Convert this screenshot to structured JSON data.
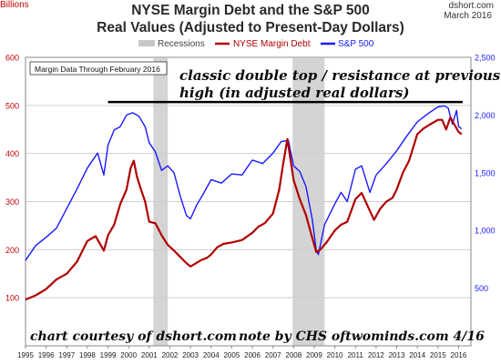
{
  "chart_data": {
    "type": "line",
    "title": "NYSE Margin Debt and the S&P 500",
    "subtitle": "Real Values (Adjusted to Present-Day Dollars)",
    "source": "dshort.com",
    "date": "March 2016",
    "ylabel_left": "Billions",
    "legend": {
      "placement": "top-center",
      "recessions": "Recessions",
      "margin_debt": "NYSE Margin Debt",
      "sp500": "S&P 500"
    },
    "note_box": "Margin Data Through February 2016",
    "annotation": "classic double top / resistance at previous high (in adjusted real dollars)",
    "annotation_line1": "classic double top / resistance at previous",
    "annotation_line2": "high (in adjusted real dollars)",
    "credit_left": "chart courtesy of dshort.com",
    "credit_right": "note by CHS   oftwominds.com  4/16",
    "left_axis": {
      "min": 0,
      "max": 600,
      "ticks": [
        "100",
        "200",
        "300",
        "400",
        "500",
        "600"
      ],
      "tick_values": [
        100,
        200,
        300,
        400,
        500,
        600
      ]
    },
    "right_axis": {
      "min": 0,
      "max": 2500,
      "ticks": [
        "500",
        "1,000",
        "1,500",
        "2,000",
        "2,500"
      ],
      "tick_values": [
        500,
        1000,
        1500,
        2000,
        2500
      ]
    },
    "x_ticks": [
      "1995",
      "1996",
      "1997",
      "1998",
      "1999",
      "2000",
      "2001",
      "2002",
      "2003",
      "2004",
      "2005",
      "2006",
      "2007",
      "2008",
      "2009",
      "2010",
      "2011",
      "2012",
      "2013",
      "2014",
      "2015",
      "2016"
    ],
    "x_range": [
      1995,
      2016.6
    ],
    "recessions": [
      [
        2001.2,
        2001.9
      ],
      [
        2007.95,
        2009.5
      ]
    ],
    "resistance_line": {
      "x": [
        1999.0,
        2016.2
      ],
      "left_value": 507
    },
    "series": [
      {
        "name": "NYSE Margin Debt",
        "axis": "left",
        "color": "#b00000",
        "x": [
          1995.0,
          1995.5,
          1996.0,
          1996.5,
          1997.0,
          1997.5,
          1998.0,
          1998.4,
          1998.8,
          1999.0,
          1999.3,
          1999.6,
          1999.9,
          2000.1,
          2000.25,
          2000.4,
          2000.6,
          2000.8,
          2001.0,
          2001.3,
          2001.6,
          2001.9,
          2002.2,
          2002.5,
          2002.8,
          2003.0,
          2003.2,
          2003.5,
          2003.8,
          2004.0,
          2004.3,
          2004.6,
          2005.0,
          2005.5,
          2006.0,
          2006.3,
          2006.6,
          2007.0,
          2007.3,
          2007.5,
          2007.7,
          2008.0,
          2008.3,
          2008.6,
          2008.9,
          2009.1,
          2009.3,
          2009.6,
          2010.0,
          2010.3,
          2010.6,
          2011.0,
          2011.3,
          2011.6,
          2011.9,
          2012.2,
          2012.5,
          2012.8,
          2013.0,
          2013.3,
          2013.6,
          2014.0,
          2014.3,
          2014.6,
          2015.0,
          2015.2,
          2015.4,
          2015.6,
          2015.8,
          2016.0,
          2016.15
        ],
        "values": [
          96,
          105,
          118,
          138,
          150,
          175,
          218,
          228,
          198,
          230,
          252,
          295,
          325,
          370,
          385,
          352,
          325,
          300,
          258,
          255,
          230,
          210,
          198,
          185,
          172,
          165,
          170,
          178,
          183,
          190,
          205,
          212,
          215,
          220,
          235,
          248,
          255,
          275,
          325,
          380,
          430,
          345,
          305,
          272,
          225,
          195,
          200,
          215,
          240,
          252,
          258,
          305,
          318,
          290,
          262,
          285,
          300,
          308,
          325,
          360,
          385,
          440,
          452,
          460,
          470,
          470,
          450,
          475,
          460,
          445,
          440
        ]
      },
      {
        "name": "S&P 500",
        "axis": "right",
        "color": "#1a1aff",
        "x": [
          1995.0,
          1995.5,
          1996.0,
          1996.5,
          1997.0,
          1997.5,
          1998.0,
          1998.5,
          1998.8,
          1999.0,
          1999.3,
          1999.6,
          1999.9,
          2000.2,
          2000.5,
          2000.8,
          2001.0,
          2001.3,
          2001.6,
          2001.9,
          2002.2,
          2002.5,
          2002.8,
          2003.0,
          2003.3,
          2003.6,
          2004.0,
          2004.5,
          2005.0,
          2005.5,
          2006.0,
          2006.5,
          2007.0,
          2007.4,
          2007.75,
          2008.0,
          2008.3,
          2008.6,
          2008.9,
          2009.1,
          2009.2,
          2009.5,
          2010.0,
          2010.3,
          2010.6,
          2011.0,
          2011.3,
          2011.7,
          2012.0,
          2012.5,
          2013.0,
          2013.5,
          2014.0,
          2014.5,
          2015.0,
          2015.3,
          2015.5,
          2015.7,
          2015.9,
          2016.0,
          2016.15
        ],
        "values": [
          740,
          870,
          940,
          1020,
          1190,
          1360,
          1540,
          1670,
          1480,
          1740,
          1870,
          1900,
          2000,
          2020,
          1990,
          1900,
          1760,
          1680,
          1520,
          1560,
          1500,
          1300,
          1130,
          1100,
          1220,
          1310,
          1440,
          1410,
          1490,
          1480,
          1610,
          1580,
          1670,
          1770,
          1780,
          1560,
          1510,
          1380,
          1100,
          830,
          790,
          1050,
          1230,
          1330,
          1250,
          1530,
          1560,
          1330,
          1480,
          1580,
          1690,
          1820,
          1940,
          2010,
          2070,
          2080,
          2060,
          1920,
          2040,
          1900,
          1880
        ]
      }
    ]
  }
}
